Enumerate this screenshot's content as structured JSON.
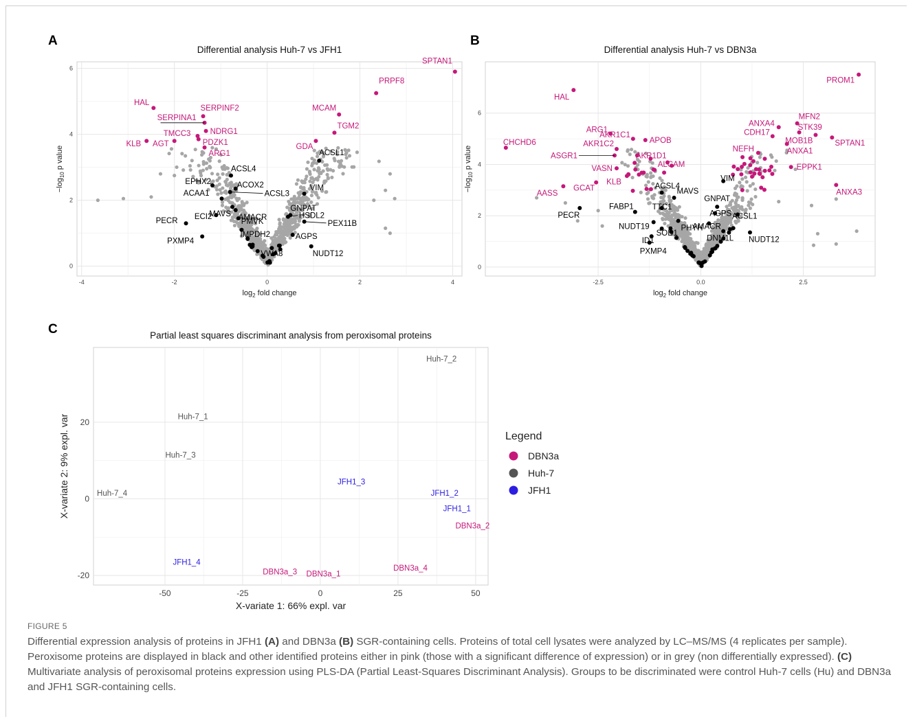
{
  "figure": {
    "label": "FIGURE 5",
    "caption": [
      {
        "t": "Differential expression analysis of proteins in JFH1 "
      },
      {
        "t": "(A)",
        "b": true
      },
      {
        "t": " and DBN3a "
      },
      {
        "t": "(B)",
        "b": true
      },
      {
        "t": " SGR-containing cells. Proteins of total cell lysates were analyzed by LC–MS/MS (4 replicates per sample). Peroxisome proteins are displayed in black and other identified proteins either in pink (those with a significant difference of expression) or in grey (non differentially expressed). "
      },
      {
        "t": "(C)",
        "b": true
      },
      {
        "t": " Multivariate analysis of peroxisomal proteins expression using PLS-DA (Partial Least-Squares Discriminant Analysis). Groups to be discriminated were control Huh-7 cells (Hu) and DBN3a and JFH1 SGR-containing cells."
      }
    ]
  },
  "colors": {
    "significant": "#c5187a",
    "peroxisome": "#000000",
    "other": "#a6a6a6",
    "DBN3a": "#c5187a",
    "Huh-7": "#555555",
    "JFH1": "#2b1ee0"
  },
  "chart_data": [
    {
      "panel": "A",
      "type": "scatter",
      "title": "Differential analysis Huh-7 vs JFH1",
      "xlabel": "log2 fold change",
      "ylabel": "−log10 p value",
      "xlim": [
        -4.1,
        4.2
      ],
      "ylim": [
        -0.3,
        6.2
      ],
      "xticks": [
        -4,
        -2,
        0,
        2,
        4
      ],
      "yticks": [
        0,
        2,
        4,
        6
      ],
      "grid": true,
      "significant": [
        {
          "label": "SPTAN1",
          "x": 4.05,
          "y": 5.9
        },
        {
          "label": "PRPF8",
          "x": 2.35,
          "y": 5.25
        },
        {
          "label": "MCAM",
          "x": 1.55,
          "y": 4.6
        },
        {
          "label": "TGM2",
          "x": 1.45,
          "y": 4.05
        },
        {
          "label": "GDA",
          "x": 1.05,
          "y": 3.8
        },
        {
          "label": "HAL",
          "x": -2.45,
          "y": 4.8
        },
        {
          "label": "SERPINF2",
          "x": -1.38,
          "y": 4.55
        },
        {
          "label": "SERPINA1",
          "x": -1.35,
          "y": 4.35
        },
        {
          "label": "NDRG1",
          "x": -1.32,
          "y": 4.1
        },
        {
          "label": "TMCC3",
          "x": -1.5,
          "y": 3.95
        },
        {
          "label": "PDZK1",
          "x": -1.48,
          "y": 3.85
        },
        {
          "label": "KLB",
          "x": -2.6,
          "y": 3.8
        },
        {
          "label": "AGT",
          "x": -2.0,
          "y": 3.8
        },
        {
          "label": "ARG1",
          "x": -1.35,
          "y": 3.6
        }
      ],
      "peroxisomal": [
        {
          "label": "ACSL1",
          "x": 1.12,
          "y": 3.2
        },
        {
          "label": "ACSL4",
          "x": -0.78,
          "y": 2.75
        },
        {
          "label": "EPHX2",
          "x": -1.18,
          "y": 2.45
        },
        {
          "label": "ACOX2",
          "x": -0.68,
          "y": 2.35
        },
        {
          "label": "ACSL3",
          "x": -0.8,
          "y": 2.25
        },
        {
          "label": "VIM",
          "x": 0.8,
          "y": 2.2
        },
        {
          "label": "ACAA1",
          "x": -0.98,
          "y": 2.05
        },
        {
          "label": "MAVS",
          "x": -0.75,
          "y": 1.8
        },
        {
          "label": "AMACR",
          "x": -0.68,
          "y": 1.7
        },
        {
          "label": "GNPAT",
          "x": 0.5,
          "y": 1.55
        },
        {
          "label": "ECI2",
          "x": -1.1,
          "y": 1.55
        },
        {
          "label": "PECR",
          "x": -1.75,
          "y": 1.3
        },
        {
          "label": "PMVK",
          "x": -0.62,
          "y": 1.45
        },
        {
          "label": "HSDL2",
          "x": 0.45,
          "y": 1.5
        },
        {
          "label": "PEX11B",
          "x": 0.8,
          "y": 1.35
        },
        {
          "label": "IMPDH2",
          "x": -0.55,
          "y": 1.1
        },
        {
          "label": "AGPS",
          "x": 0.55,
          "y": 0.95
        },
        {
          "label": "PXMP4",
          "x": -1.4,
          "y": 0.9
        },
        {
          "label": "VWA8",
          "x": 0.1,
          "y": 0.55
        },
        {
          "label": "NUDT12",
          "x": 0.95,
          "y": 0.6
        }
      ]
    },
    {
      "panel": "B",
      "type": "scatter",
      "title": "Differential analysis Huh-7 vs DBN3a",
      "xlabel": "log2 fold change",
      "ylabel": "−log10 p value",
      "xlim": [
        -5.25,
        4.25
      ],
      "ylim": [
        -0.35,
        8.0
      ],
      "xticks": [
        -2.5,
        0.0,
        2.5
      ],
      "yticks": [
        0,
        2,
        4,
        6
      ],
      "grid": true,
      "significant": [
        {
          "label": "PROM1",
          "x": 3.85,
          "y": 7.5
        },
        {
          "label": "HAL",
          "x": -3.1,
          "y": 6.9
        },
        {
          "label": "ANXA4",
          "x": 1.9,
          "y": 5.45
        },
        {
          "label": "MFN2",
          "x": 2.35,
          "y": 5.6
        },
        {
          "label": "CDH17",
          "x": 1.75,
          "y": 5.1
        },
        {
          "label": "STK39",
          "x": 2.4,
          "y": 5.25
        },
        {
          "label": "MOB1B",
          "x": 2.8,
          "y": 5.15
        },
        {
          "label": "SPTAN1",
          "x": 3.2,
          "y": 5.05
        },
        {
          "label": "NEFH",
          "x": 1.4,
          "y": 4.45
        },
        {
          "label": "ANXA1",
          "x": 2.1,
          "y": 4.8
        },
        {
          "label": "EPPK1",
          "x": 2.2,
          "y": 3.9
        },
        {
          "label": "ANXA3",
          "x": 3.3,
          "y": 3.2
        },
        {
          "label": "CHCHD6",
          "x": -4.75,
          "y": 4.65
        },
        {
          "label": "ARG1",
          "x": -2.2,
          "y": 5.2
        },
        {
          "label": "AKR1C1",
          "x": -1.65,
          "y": 5.0
        },
        {
          "label": "APOB",
          "x": -1.35,
          "y": 4.95
        },
        {
          "label": "AKR1C2",
          "x": -2.05,
          "y": 4.6
        },
        {
          "label": "ASGR1",
          "x": -2.1,
          "y": 4.35
        },
        {
          "label": "AKR1D1",
          "x": -1.55,
          "y": 4.35
        },
        {
          "label": "ALCAM",
          "x": -1.15,
          "y": 3.8
        },
        {
          "label": "VASN",
          "x": -2.05,
          "y": 3.85
        },
        {
          "label": "GCAT",
          "x": -2.55,
          "y": 3.3
        },
        {
          "label": "KLB",
          "x": -1.8,
          "y": 3.55
        },
        {
          "label": "AASS",
          "x": -3.35,
          "y": 3.15
        }
      ],
      "peroxisomal": [
        {
          "label": "PECR",
          "x": -2.95,
          "y": 2.3
        },
        {
          "label": "ACSL4",
          "x": -0.95,
          "y": 2.9
        },
        {
          "label": "MAVS",
          "x": -0.65,
          "y": 2.7
        },
        {
          "label": "FABP1",
          "x": -1.6,
          "y": 2.15
        },
        {
          "label": "TTC1",
          "x": -0.95,
          "y": 2.3
        },
        {
          "label": "PHYH",
          "x": -0.55,
          "y": 1.8
        },
        {
          "label": "NUDT19",
          "x": -1.15,
          "y": 1.75
        },
        {
          "label": "SOD1",
          "x": -0.95,
          "y": 1.5
        },
        {
          "label": "ID1",
          "x": -1.2,
          "y": 1.2
        },
        {
          "label": "PXMP4",
          "x": -1.25,
          "y": 0.95
        },
        {
          "label": "VIM",
          "x": 0.55,
          "y": 3.35
        },
        {
          "label": "GNPAT",
          "x": 0.4,
          "y": 2.35
        },
        {
          "label": "AGPS",
          "x": 0.35,
          "y": 2.1
        },
        {
          "label": "ACSL1",
          "x": 0.9,
          "y": 2.05
        },
        {
          "label": "AMACR",
          "x": 0.2,
          "y": 1.7
        },
        {
          "label": "DNM1L",
          "x": 0.55,
          "y": 1.4
        },
        {
          "label": "NUDT12",
          "x": 1.2,
          "y": 1.35
        }
      ]
    },
    {
      "panel": "C",
      "type": "scatter",
      "title": "Partial least squares discriminant analysis from peroxisomal proteins",
      "xlabel": "X-variate 1: 66% expl. var",
      "ylabel": "X-variate 2: 9% expl. var",
      "xlim": [
        -73,
        54
      ],
      "ylim": [
        -22.5,
        39.5
      ],
      "xticks": [
        -50,
        -25,
        0,
        25,
        50
      ],
      "yticks": [
        -20,
        0,
        20
      ],
      "grid": true,
      "legend": {
        "title": "Legend",
        "position": "right",
        "entries": [
          "DBN3a",
          "Huh-7",
          "JFH1"
        ]
      },
      "points": [
        {
          "label": "Huh-7_1",
          "group": "Huh-7",
          "x": -41,
          "y": 21.5
        },
        {
          "label": "Huh-7_2",
          "group": "Huh-7",
          "x": 39,
          "y": 36.5
        },
        {
          "label": "Huh-7_3",
          "group": "Huh-7",
          "x": -45,
          "y": 11.5
        },
        {
          "label": "Huh-7_4",
          "group": "Huh-7",
          "x": -67,
          "y": 1.5
        },
        {
          "label": "JFH1_1",
          "group": "JFH1",
          "x": 44,
          "y": -2.5
        },
        {
          "label": "JFH1_2",
          "group": "JFH1",
          "x": 40,
          "y": 1.5
        },
        {
          "label": "JFH1_3",
          "group": "JFH1",
          "x": 10,
          "y": 4.5
        },
        {
          "label": "JFH1_4",
          "group": "JFH1",
          "x": -43,
          "y": -16.5
        },
        {
          "label": "DBN3a_1",
          "group": "DBN3a",
          "x": 1,
          "y": -19.5
        },
        {
          "label": "DBN3a_2",
          "group": "DBN3a",
          "x": 49,
          "y": -7
        },
        {
          "label": "DBN3a_3",
          "group": "DBN3a",
          "x": -13,
          "y": -19
        },
        {
          "label": "DBN3a_4",
          "group": "DBN3a",
          "x": 29,
          "y": -18
        }
      ]
    }
  ]
}
